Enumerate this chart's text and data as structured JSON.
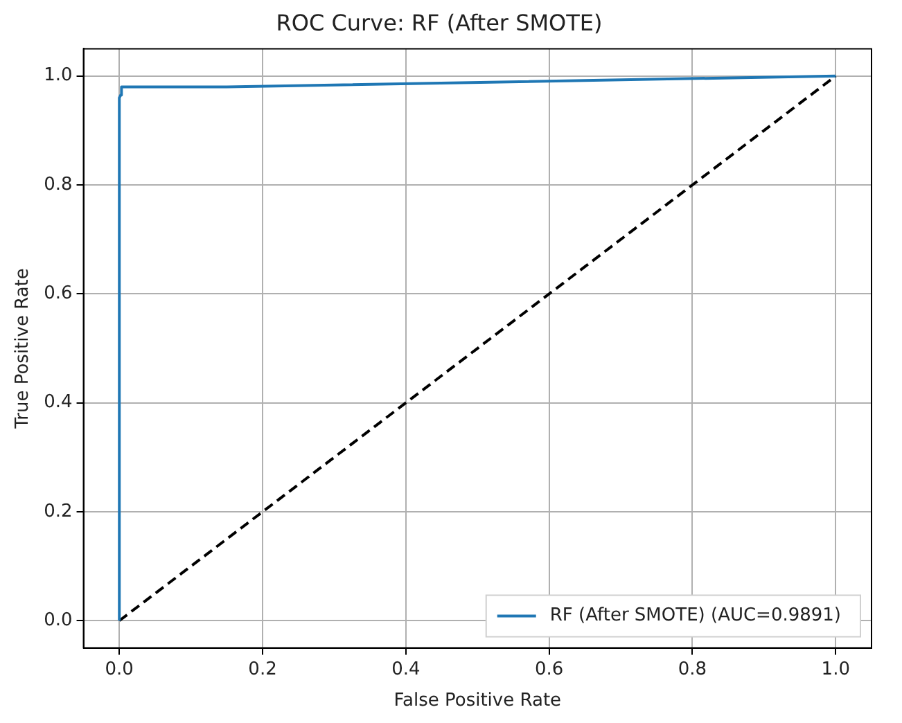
{
  "chart_data": {
    "type": "line",
    "title": "ROC Curve: RF (After SMOTE)",
    "xlabel": "False Positive Rate",
    "ylabel": "True Positive Rate",
    "series": [
      {
        "name": "RF (After SMOTE) (AUC=0.9891)",
        "color": "#1f77b4",
        "x": [
          0,
          0,
          0.002,
          0.003,
          0.15,
          1
        ],
        "values": [
          0,
          0.96,
          0.965,
          0.98,
          0.98,
          1
        ]
      },
      {
        "color": "#000000",
        "line_style": "dashed",
        "x": [
          0,
          1
        ],
        "values": [
          0,
          1
        ]
      }
    ],
    "xlim": [
      -0.05,
      1.05
    ],
    "ylim": [
      -0.05,
      1.05
    ],
    "xticks": [
      {
        "value": 0,
        "label": "0.0"
      },
      {
        "value": 0.2,
        "label": "0.2"
      },
      {
        "value": 0.4,
        "label": "0.4"
      },
      {
        "value": 0.6,
        "label": "0.6"
      },
      {
        "value": 0.8,
        "label": "0.8"
      },
      {
        "value": 1,
        "label": "1.0"
      }
    ],
    "yticks": [
      {
        "value": 0,
        "label": "0.0"
      },
      {
        "value": 0.2,
        "label": "0.2"
      },
      {
        "value": 0.4,
        "label": "0.4"
      },
      {
        "value": 0.6,
        "label": "0.6"
      },
      {
        "value": 0.8,
        "label": "0.8"
      },
      {
        "value": 1,
        "label": "1.0"
      }
    ],
    "grid": true,
    "legend": "bottom right",
    "marker": "none"
  }
}
